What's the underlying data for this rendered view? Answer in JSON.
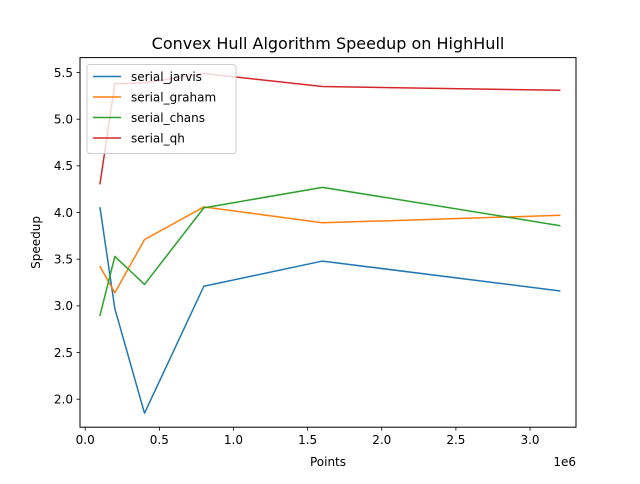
{
  "chart_data": {
    "type": "line",
    "title": "Convex Hull Algorithm Speedup on HighHull",
    "xlabel": "Points",
    "ylabel": "Speedup",
    "x_offset_label": "1e6",
    "x_scale": 1000000,
    "xlim": [
      -35000,
      3310000
    ],
    "ylim": [
      1.7,
      5.66
    ],
    "x_ticks": [
      0,
      500000,
      1000000,
      1500000,
      2000000,
      2500000,
      3000000
    ],
    "x_tick_labels": [
      "0.0",
      "0.5",
      "1.0",
      "1.5",
      "2.0",
      "2.5",
      "3.0"
    ],
    "y_ticks": [
      2.0,
      2.5,
      3.0,
      3.5,
      4.0,
      4.5,
      5.0,
      5.5
    ],
    "y_tick_labels": [
      "2.0",
      "2.5",
      "3.0",
      "3.5",
      "4.0",
      "4.5",
      "5.0",
      "5.5"
    ],
    "grid": false,
    "legend_position": "upper-left",
    "x": [
      100000,
      200000,
      400000,
      800000,
      1600000,
      3200000
    ],
    "series": [
      {
        "name": "serial_jarvis",
        "color": "#1f77b4",
        "values": [
          4.05,
          2.97,
          1.85,
          3.21,
          3.48,
          3.16
        ]
      },
      {
        "name": "serial_graham",
        "color": "#ff7f0e",
        "values": [
          3.42,
          3.14,
          3.71,
          4.06,
          3.89,
          3.97
        ]
      },
      {
        "name": "serial_chans",
        "color": "#2ca02c",
        "values": [
          2.9,
          3.53,
          3.23,
          4.05,
          4.27,
          3.86
        ]
      },
      {
        "name": "serial_qh",
        "color": "#d62728",
        "values": [
          4.31,
          5.38,
          5.39,
          5.49,
          5.35,
          5.31
        ]
      }
    ]
  }
}
